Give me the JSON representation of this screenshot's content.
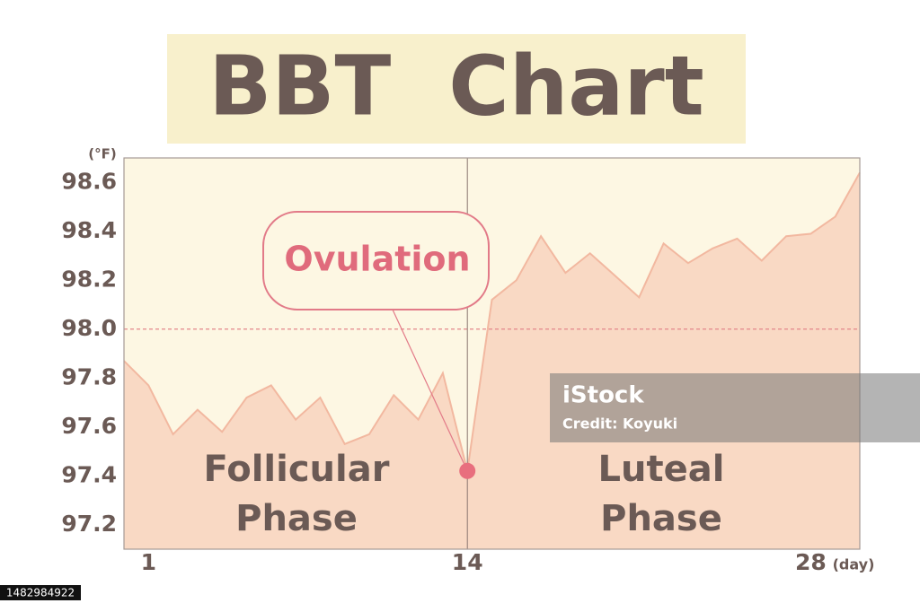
{
  "chart_data": {
    "type": "line",
    "title": "BBT  Chart",
    "y_unit": "(°F)",
    "x_unit": "(day)",
    "x": [
      0,
      1,
      2,
      3,
      4,
      5,
      6,
      7,
      8,
      9,
      10,
      11,
      12,
      13,
      14,
      15,
      16,
      17,
      18,
      19,
      20,
      21,
      22,
      23,
      24,
      25,
      26,
      27,
      28,
      29,
      30
    ],
    "values": [
      97.87,
      97.77,
      97.57,
      97.67,
      97.58,
      97.72,
      97.77,
      97.63,
      97.72,
      97.53,
      97.57,
      97.73,
      97.63,
      97.82,
      97.42,
      98.12,
      98.2,
      98.38,
      98.23,
      98.31,
      98.22,
      98.13,
      98.35,
      98.27,
      98.33,
      98.37,
      98.28,
      98.38,
      98.39,
      98.46,
      98.64
    ],
    "color": "#f2b8a0",
    "xlim": [
      0,
      30
    ],
    "xticks": [
      1,
      14,
      28
    ],
    "ylim": [
      97.1,
      98.7
    ],
    "yticks": [
      {
        "value": 97.2,
        "label": "97.2"
      },
      {
        "value": 97.4,
        "label": "97.4"
      },
      {
        "value": 97.6,
        "label": "97.6"
      },
      {
        "value": 97.8,
        "label": "97.8"
      },
      {
        "value": 98.0,
        "label": "98.0"
      },
      {
        "value": 98.2,
        "label": "98.2"
      },
      {
        "value": 98.4,
        "label": "98.4"
      },
      {
        "value": 98.6,
        "label": "98.6"
      }
    ],
    "reference_line": 98.0,
    "ovulation_day": 14,
    "ovulation_label": "Ovulation",
    "phase_labels": [
      [
        "Follicular",
        "Phase"
      ],
      [
        "Luteal",
        "Phase"
      ]
    ]
  },
  "watermark": {
    "brand": "iStock",
    "credit": "Credit: Koyuki"
  },
  "image_id": "1482984922"
}
